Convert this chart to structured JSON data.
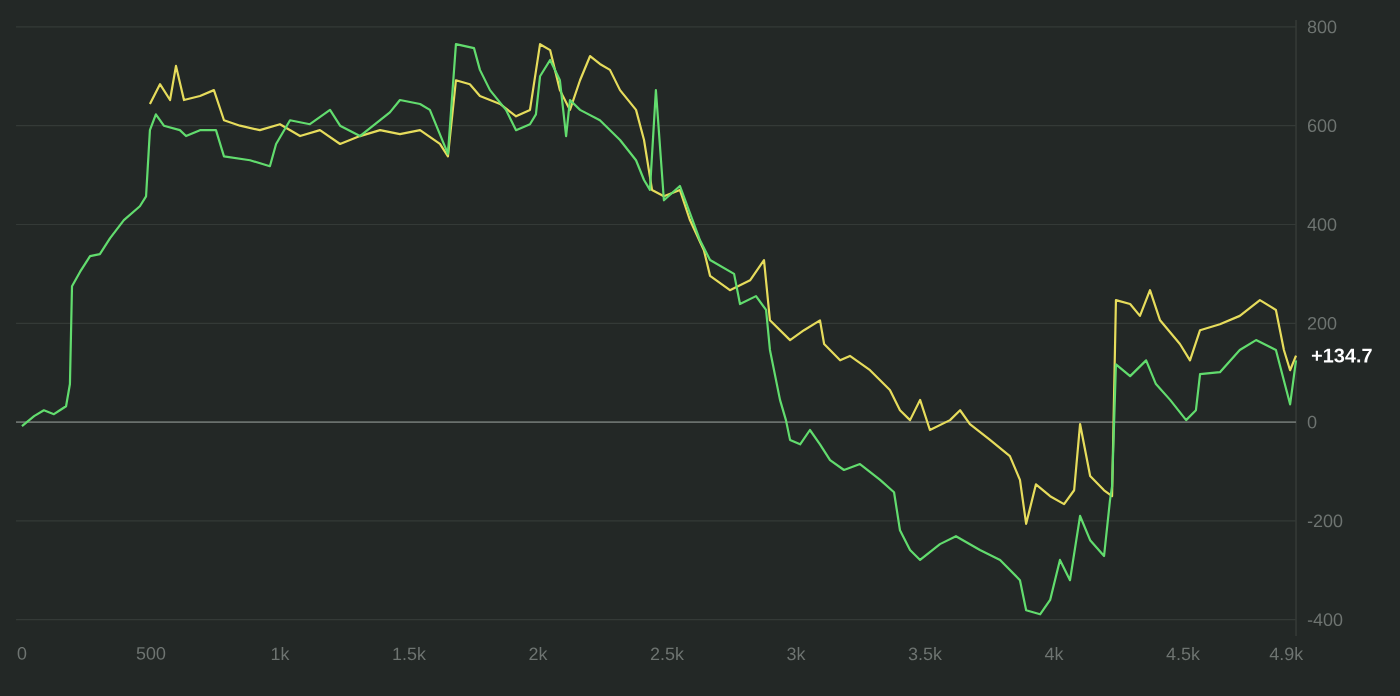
{
  "chart_data": {
    "type": "line",
    "x": [
      0,
      47,
      85,
      124,
      147,
      171,
      186,
      194,
      225,
      264,
      302,
      341,
      395,
      457,
      481,
      496,
      519,
      550,
      612,
      636,
      690,
      752,
      783,
      884,
      961,
      985,
      1039,
      1116,
      1194,
      1233,
      1310,
      1426,
      1465,
      1543,
      1581,
      1651,
      1682,
      1752,
      1775,
      1814,
      1876,
      1915,
      1969,
      1992,
      2008,
      2047,
      2085,
      2109,
      2124,
      2163,
      2240,
      2318,
      2380,
      2411,
      2434,
      2457,
      2488,
      2550,
      2628,
      2667,
      2760,
      2783,
      2845,
      2884,
      2899,
      2938,
      2961,
      2977,
      3016,
      3054,
      3093,
      3132,
      3186,
      3248,
      3326,
      3380,
      3403,
      3442,
      3481,
      3558,
      3620,
      3713,
      3791,
      3868,
      3892,
      3946,
      3985,
      4023,
      4062,
      4101,
      4140,
      4194,
      4217,
      4225,
      4240,
      4295,
      4357,
      4395,
      4450,
      4512,
      4550,
      4566,
      4643,
      4720,
      4783,
      4860,
      4915,
      4938
    ],
    "series": [
      {
        "color": "#e6dc5c",
        "x": [
          496,
          535,
          574,
          597,
          628,
          690,
          744,
          783,
          845,
          922,
          1000,
          1078,
          1155,
          1233,
          1310,
          1388,
          1465,
          1543,
          1620,
          1651,
          1682,
          1736,
          1775,
          1853,
          1915,
          1969,
          2008,
          2047,
          2085,
          2124,
          2163,
          2202,
          2240,
          2279,
          2318,
          2380,
          2411,
          2442,
          2488,
          2550,
          2589,
          2643,
          2667,
          2744,
          2822,
          2876,
          2899,
          2977,
          3031,
          3093,
          3109,
          3171,
          3209,
          3287,
          3364,
          3403,
          3442,
          3481,
          3519,
          3597,
          3636,
          3674,
          3752,
          3829,
          3868,
          3892,
          3930,
          3985,
          4039,
          4078,
          4101,
          4140,
          4194,
          4225,
          4240,
          4295,
          4333,
          4372,
          4411,
          4488,
          4527,
          4566,
          4643,
          4720,
          4798,
          4860,
          4891,
          4915,
          4938
        ],
        "values": [
          644,
          684,
          652,
          721,
          652,
          660,
          672,
          611,
          600,
          591,
          603,
          579,
          591,
          563,
          579,
          591,
          583,
          591,
          563,
          538,
          692,
          684,
          660,
          644,
          619,
          632,
          765,
          753,
          672,
          632,
          692,
          741,
          725,
          713,
          672,
          632,
          571,
          470,
          457,
          470,
          409,
          348,
          296,
          267,
          287,
          328,
          206,
          166,
          186,
          206,
          158,
          125,
          134,
          105,
          65,
          24,
          4,
          45,
          -16,
          4,
          24,
          -4,
          -36,
          -69,
          -117,
          -206,
          -126,
          -150,
          -166,
          -138,
          -4,
          -109,
          -138,
          -150,
          247,
          239,
          215,
          267,
          206,
          158,
          125,
          186,
          198,
          215,
          247,
          227,
          146,
          105,
          134.7
        ]
      },
      {
        "color": "#62dc6e",
        "values": [
          -8,
          12,
          24,
          16,
          24,
          32,
          77,
          275,
          304,
          336,
          340,
          372,
          409,
          437,
          457,
          591,
          623,
          600,
          591,
          579,
          591,
          591,
          538,
          530,
          518,
          563,
          611,
          603,
          632,
          600,
          579,
          627,
          652,
          644,
          632,
          543,
          765,
          757,
          713,
          672,
          632,
          591,
          603,
          623,
          700,
          733,
          692,
          579,
          652,
          632,
          611,
          571,
          530,
          490,
          470,
          672,
          449,
          478,
          368,
          328,
          300,
          239,
          255,
          227,
          146,
          45,
          4,
          -36,
          -45,
          -16,
          -45,
          -77,
          -97,
          -85,
          -117,
          -142,
          -219,
          -259,
          -279,
          -247,
          -231,
          -259,
          -279,
          -320,
          -381,
          -389,
          -360,
          -279,
          -320,
          -190,
          -239,
          -271,
          -158,
          -130,
          117,
          93,
          125,
          77,
          45,
          4,
          24,
          97,
          101,
          146,
          166,
          146,
          36,
          125
        ]
      }
    ],
    "xlim": [
      -23,
      4938
    ],
    "ylim": [
      -433,
      814
    ],
    "xticks": [
      0,
      500,
      {
        "value": 1000,
        "label": "1k"
      },
      {
        "value": 1500,
        "label": "1.5k"
      },
      {
        "value": 2000,
        "label": "2k"
      },
      {
        "value": 2500,
        "label": "2.5k"
      },
      {
        "value": 3000,
        "label": "3k"
      },
      {
        "value": 3500,
        "label": "3.5k"
      },
      {
        "value": 4000,
        "label": "4k"
      },
      {
        "value": 4500,
        "label": "4.5k"
      },
      {
        "value": 4900,
        "label": "4.9k"
      }
    ],
    "yticks": [
      -400,
      -200,
      0,
      200,
      400,
      600,
      800
    ],
    "grid": "y",
    "ref_lines": [
      {
        "axis": "y",
        "value": 0,
        "color": "#6a706d"
      }
    ],
    "annotations": [
      {
        "text": "+134.7",
        "x": 4938,
        "y": 134.7
      }
    ]
  }
}
